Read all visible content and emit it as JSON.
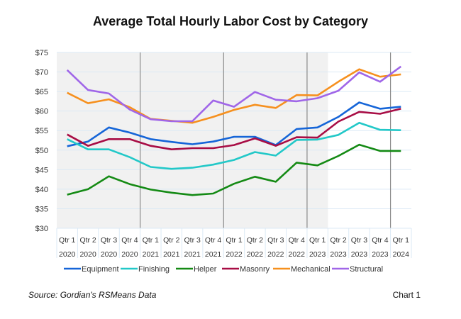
{
  "chart_data": {
    "type": "line",
    "title": "Average Total Hourly Labor Cost by Category",
    "xlabel": "",
    "ylabel": "",
    "ylim": [
      30,
      75
    ],
    "yticks": [
      "$30",
      "$35",
      "$40",
      "$45",
      "$50",
      "$55",
      "$60",
      "$65",
      "$70",
      "$75"
    ],
    "ytick_values": [
      30,
      35,
      40,
      45,
      50,
      55,
      60,
      65,
      70,
      75
    ],
    "grid": true,
    "legend_placement": "bottom",
    "shaded_range": [
      "Qtr 1 2020",
      "Qtr 1 2023"
    ],
    "year_separators_after": [
      "Qtr 4 2020",
      "Qtr 4 2021",
      "Qtr 4 2022",
      "Qtr 4 2023"
    ],
    "categories": [
      [
        "Qtr 1",
        "2020"
      ],
      [
        "Qtr 2",
        "2020"
      ],
      [
        "Qtr 3",
        "2020"
      ],
      [
        "Qtr 4",
        "2020"
      ],
      [
        "Qtr 1",
        "2021"
      ],
      [
        "Qtr 2",
        "2021"
      ],
      [
        "Qtr 3",
        "2021"
      ],
      [
        "Qtr 4",
        "2021"
      ],
      [
        "Qtr 1",
        "2022"
      ],
      [
        "Qtr 2",
        "2022"
      ],
      [
        "Qtr 3",
        "2022"
      ],
      [
        "Qtr 4",
        "2022"
      ],
      [
        "Qtr 1",
        "2023"
      ],
      [
        "Qtr 2",
        "2023"
      ],
      [
        "Qtr 3",
        "2023"
      ],
      [
        "Qtr 4",
        "2023"
      ],
      [
        "Qtr 1",
        "2024"
      ]
    ],
    "series": [
      {
        "name": "Equipment",
        "color": "#1565d8",
        "values": [
          51.0,
          52.2,
          55.8,
          54.5,
          52.8,
          52.1,
          51.5,
          52.2,
          53.4,
          53.4,
          51.3,
          55.4,
          55.8,
          58.5,
          62.2,
          60.6,
          61.1
        ]
      },
      {
        "name": "Finishing",
        "color": "#22c8c8",
        "values": [
          52.8,
          50.2,
          50.2,
          48.2,
          45.7,
          45.2,
          45.5,
          46.3,
          47.5,
          49.5,
          48.6,
          52.6,
          52.7,
          53.9,
          57.0,
          55.2,
          55.1
        ]
      },
      {
        "name": "Helper",
        "color": "#148a14",
        "values": [
          38.6,
          40.0,
          43.3,
          41.3,
          39.9,
          39.1,
          38.5,
          38.9,
          41.4,
          43.2,
          41.9,
          46.8,
          46.1,
          48.5,
          51.4,
          49.8,
          49.8
        ]
      },
      {
        "name": "Masonry",
        "color": "#a80d45",
        "values": [
          54.0,
          51.1,
          52.8,
          52.8,
          51.1,
          50.2,
          50.5,
          50.5,
          51.3,
          53.0,
          51.1,
          53.3,
          53.2,
          57.3,
          59.8,
          59.3,
          60.6
        ]
      },
      {
        "name": "Mechanical",
        "color": "#f6901e",
        "values": [
          64.7,
          62.0,
          63.0,
          61.0,
          58.0,
          57.5,
          57.0,
          58.5,
          60.3,
          61.6,
          60.8,
          64.1,
          64.0,
          67.5,
          70.7,
          68.8,
          69.4
        ]
      },
      {
        "name": "Structural",
        "color": "#a066e8",
        "values": [
          70.5,
          65.4,
          64.5,
          60.4,
          57.9,
          57.4,
          57.4,
          62.7,
          61.1,
          64.9,
          62.9,
          62.5,
          63.3,
          65.2,
          69.9,
          67.5,
          71.4
        ]
      }
    ]
  },
  "footer": {
    "source": "Source: Gordian's RSMeans Data",
    "chart_label": "Chart 1"
  }
}
